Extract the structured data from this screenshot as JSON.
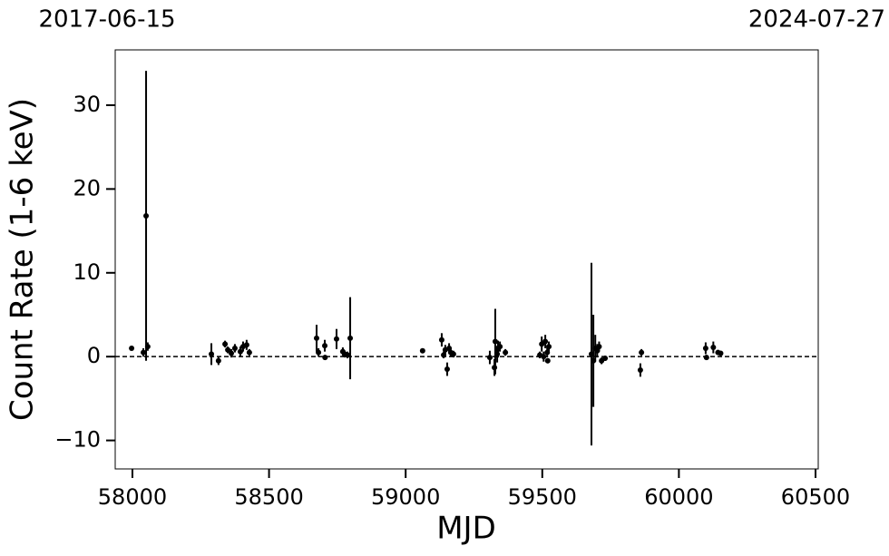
{
  "chart_data": {
    "type": "errorbar",
    "xlabel": "MJD",
    "ylabel": "Count Rate (1-6 keV)",
    "date_start": "2017-06-15",
    "date_end": "2024-07-27",
    "xlim": [
      57937,
      60510
    ],
    "ylim": [
      -13.4,
      36.6
    ],
    "xticks": [
      58000,
      58500,
      59000,
      59500,
      60000,
      60500
    ],
    "yticks": [
      {
        "value": -10,
        "label": "−10"
      },
      0,
      10,
      20,
      30
    ],
    "hline": 0,
    "color": "#000000",
    "x": [
      57997,
      58050,
      58040,
      58056,
      58289,
      58315,
      58339,
      58349,
      58362,
      58375,
      58395,
      58405,
      58418,
      58428,
      58674,
      58681,
      58704,
      58705,
      58747,
      58770,
      58777,
      58787,
      58797,
      59062,
      59132,
      59139,
      59145,
      59152,
      59159,
      59165,
      59175,
      59308,
      59325,
      59328,
      59335,
      59338,
      59345,
      59365,
      59491,
      59498,
      59505,
      59511,
      59518,
      59524,
      59520,
      59680,
      59687,
      59694,
      59701,
      59708,
      59717,
      59730,
      59859,
      59863,
      60098,
      60101,
      60126,
      60143,
      60153
    ],
    "values": [
      1.0,
      16.8,
      0.5,
      1.2,
      0.3,
      -0.5,
      1.5,
      0.8,
      0.4,
      1.0,
      0.6,
      1.2,
      1.4,
      0.5,
      2.2,
      0.5,
      1.3,
      -0.1,
      2.1,
      0.6,
      0.3,
      0.2,
      2.2,
      0.7,
      2.0,
      0.2,
      0.8,
      -1.5,
      1.0,
      0.5,
      0.3,
      -0.1,
      -1.3,
      1.8,
      0.3,
      0.9,
      1.2,
      0.5,
      0.2,
      1.5,
      0.0,
      1.8,
      0.5,
      1.2,
      -0.5,
      0.3,
      -0.5,
      1.0,
      0.7,
      1.2,
      -0.5,
      -0.2,
      -1.6,
      0.5,
      1.0,
      -0.1,
      1.1,
      0.5,
      0.4
    ],
    "errors": [
      0.2,
      17.3,
      0.5,
      0.5,
      1.3,
      0.5,
      0.4,
      0.4,
      0.5,
      0.5,
      0.6,
      0.6,
      0.6,
      0.4,
      1.6,
      0.5,
      0.7,
      0.3,
      1.2,
      0.5,
      0.4,
      0.4,
      4.9,
      0.2,
      0.8,
      0.4,
      0.6,
      0.8,
      0.6,
      0.5,
      0.4,
      0.8,
      1.0,
      3.9,
      1.0,
      1.0,
      0.6,
      0.4,
      0.4,
      0.9,
      0.6,
      0.8,
      0.6,
      0.6,
      0.3,
      10.9,
      5.5,
      1.6,
      0.8,
      0.6,
      0.4,
      0.3,
      0.8,
      0.4,
      0.7,
      0.3,
      0.7,
      0.3,
      0.2
    ]
  }
}
